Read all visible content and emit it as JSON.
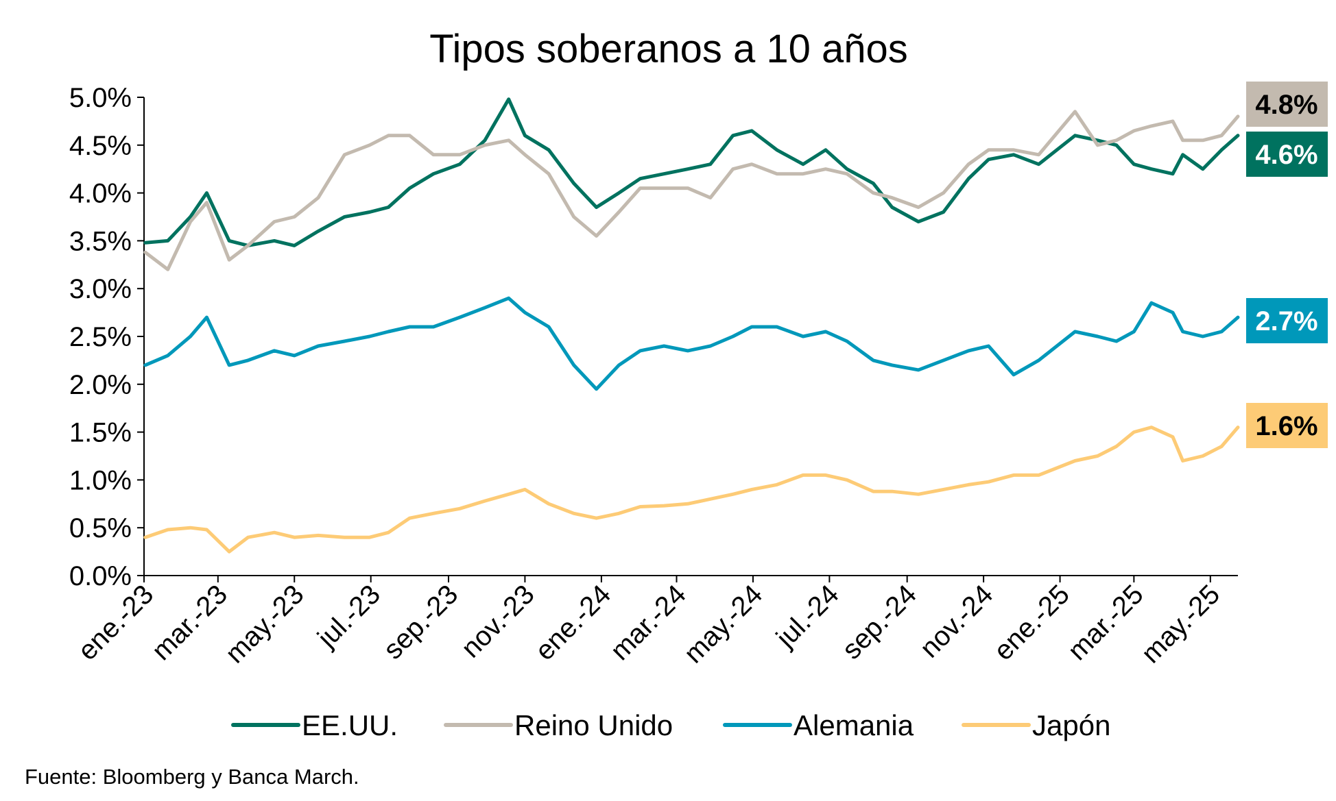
{
  "chart_data": {
    "type": "line",
    "title": "Tipos soberanos a 10 años",
    "xlabel": "",
    "ylabel": "",
    "x_tick_labels": [
      "ene.-23",
      "mar.-23",
      "may.-23",
      "jul.-23",
      "sep.-23",
      "nov.-23",
      "ene.-24",
      "mar.-24",
      "may.-24",
      "jul.-24",
      "sep.-24",
      "nov.-24",
      "ene.-25",
      "mar.-25",
      "may.-25"
    ],
    "y_tick_labels": [
      "0.0%",
      "0.5%",
      "1.0%",
      "1.5%",
      "2.0%",
      "2.5%",
      "3.0%",
      "3.5%",
      "4.0%",
      "4.5%",
      "5.0%"
    ],
    "ylim": [
      0,
      5
    ],
    "y_unit": "%",
    "grid": false,
    "legend_position": "bottom",
    "x_dates": [
      "2023-01-02",
      "2023-01-20",
      "2023-02-07",
      "2023-02-20",
      "2023-03-10",
      "2023-03-25",
      "2023-04-15",
      "2023-05-01",
      "2023-05-20",
      "2023-06-10",
      "2023-06-30",
      "2023-07-15",
      "2023-08-01",
      "2023-08-20",
      "2023-09-10",
      "2023-09-30",
      "2023-10-19",
      "2023-11-01",
      "2023-11-20",
      "2023-12-10",
      "2023-12-28",
      "2024-01-15",
      "2024-02-01",
      "2024-02-20",
      "2024-03-10",
      "2024-03-28",
      "2024-04-15",
      "2024-04-30",
      "2024-05-20",
      "2024-06-10",
      "2024-06-28",
      "2024-07-15",
      "2024-08-05",
      "2024-08-20",
      "2024-09-10",
      "2024-09-30",
      "2024-10-20",
      "2024-11-05",
      "2024-11-25",
      "2024-12-15",
      "2025-01-13",
      "2025-01-31",
      "2025-02-15",
      "2025-03-01",
      "2025-03-15",
      "2025-04-01",
      "2025-04-09",
      "2025-04-25",
      "2025-05-10",
      "2025-05-23"
    ],
    "series": [
      {
        "name": "EE.UU.",
        "color": "#00725F",
        "values": [
          3.48,
          3.5,
          3.75,
          4.0,
          3.5,
          3.45,
          3.5,
          3.45,
          3.6,
          3.75,
          3.8,
          3.85,
          4.05,
          4.2,
          4.3,
          4.55,
          4.98,
          4.6,
          4.45,
          4.1,
          3.85,
          4.0,
          4.15,
          4.2,
          4.25,
          4.3,
          4.6,
          4.65,
          4.45,
          4.3,
          4.45,
          4.25,
          4.1,
          3.85,
          3.7,
          3.8,
          4.15,
          4.35,
          4.4,
          4.3,
          4.6,
          4.55,
          4.5,
          4.3,
          4.25,
          4.2,
          4.4,
          4.25,
          4.45,
          4.6
        ]
      },
      {
        "name": "Reino Unido",
        "color": "#C3BAAF",
        "values": [
          3.38,
          3.2,
          3.7,
          3.9,
          3.3,
          3.45,
          3.7,
          3.75,
          3.95,
          4.4,
          4.5,
          4.6,
          4.6,
          4.4,
          4.4,
          4.5,
          4.55,
          4.4,
          4.2,
          3.75,
          3.55,
          3.8,
          4.05,
          4.05,
          4.05,
          3.95,
          4.25,
          4.3,
          4.2,
          4.2,
          4.25,
          4.2,
          4.0,
          3.95,
          3.85,
          4.0,
          4.3,
          4.45,
          4.45,
          4.4,
          4.85,
          4.5,
          4.55,
          4.65,
          4.7,
          4.75,
          4.55,
          4.55,
          4.6,
          4.8
        ]
      },
      {
        "name": "Alemania",
        "color": "#0098BA",
        "values": [
          2.2,
          2.3,
          2.5,
          2.7,
          2.2,
          2.25,
          2.35,
          2.3,
          2.4,
          2.45,
          2.5,
          2.55,
          2.6,
          2.6,
          2.7,
          2.8,
          2.9,
          2.75,
          2.6,
          2.2,
          1.95,
          2.2,
          2.35,
          2.4,
          2.35,
          2.4,
          2.5,
          2.6,
          2.6,
          2.5,
          2.55,
          2.45,
          2.25,
          2.2,
          2.15,
          2.25,
          2.35,
          2.4,
          2.1,
          2.25,
          2.55,
          2.5,
          2.45,
          2.55,
          2.85,
          2.75,
          2.55,
          2.5,
          2.55,
          2.7
        ]
      },
      {
        "name": "Japón",
        "color": "#FDCB76",
        "values": [
          0.4,
          0.48,
          0.5,
          0.48,
          0.25,
          0.4,
          0.45,
          0.4,
          0.42,
          0.4,
          0.4,
          0.45,
          0.6,
          0.65,
          0.7,
          0.78,
          0.85,
          0.9,
          0.75,
          0.65,
          0.6,
          0.65,
          0.72,
          0.73,
          0.75,
          0.8,
          0.85,
          0.9,
          0.95,
          1.05,
          1.05,
          1.0,
          0.88,
          0.88,
          0.85,
          0.9,
          0.95,
          0.98,
          1.05,
          1.05,
          1.2,
          1.25,
          1.35,
          1.5,
          1.55,
          1.45,
          1.2,
          1.25,
          1.35,
          1.55
        ]
      }
    ],
    "end_labels": [
      {
        "series": "Reino Unido",
        "text": "4.8%",
        "bg": "#C3BAAF",
        "fg": "#000000"
      },
      {
        "series": "EE.UU.",
        "text": "4.6%",
        "bg": "#00725F",
        "fg": "#FFFFFF"
      },
      {
        "series": "Alemania",
        "text": "2.7%",
        "bg": "#0098BA",
        "fg": "#FFFFFF"
      },
      {
        "series": "Japón",
        "text": "1.6%",
        "bg": "#FDCB76",
        "fg": "#000000"
      }
    ]
  },
  "footer": {
    "source": "Fuente: Bloomberg y Banca March."
  }
}
